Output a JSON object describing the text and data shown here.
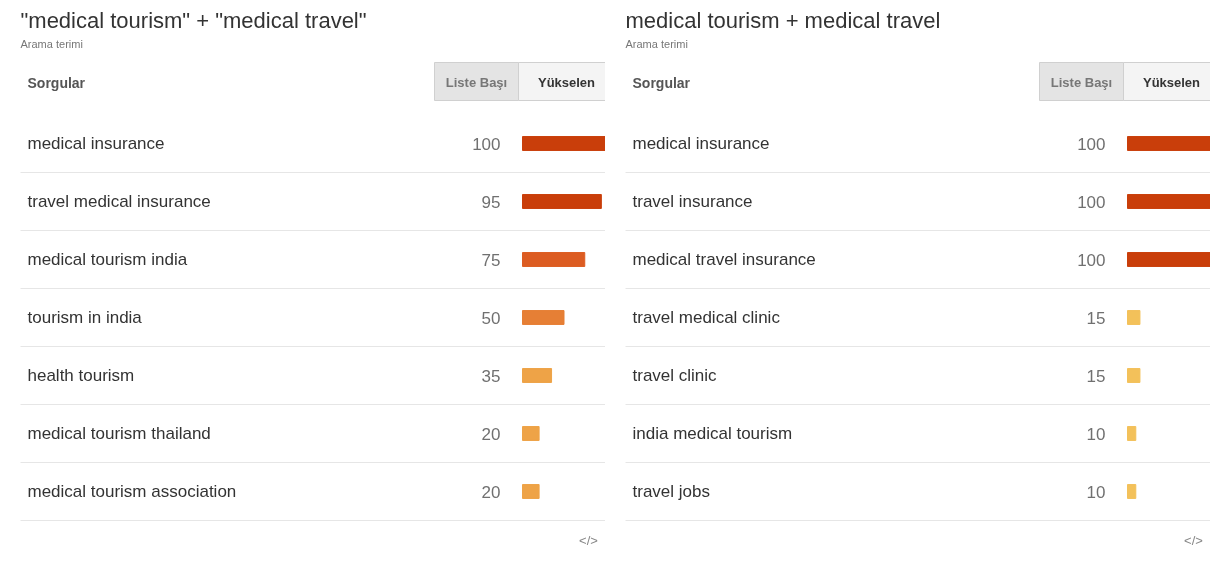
{
  "chart_data": [
    {
      "type": "bar",
      "orientation": "horizontal",
      "title": "\"medical tourism\" + \"medical travel\"",
      "subtitle": "Arama terimi",
      "annotations": [
        "Sorgular",
        "Liste Başı",
        "Yükselen",
        "</>"
      ],
      "categories": [
        "medical insurance",
        "travel medical insurance",
        "medical tourism india",
        "tourism in india",
        "health tourism",
        "medical tourism thailand",
        "medical tourism association"
      ],
      "values": [
        100,
        95,
        75,
        50,
        35,
        20,
        20
      ],
      "colors": [
        "#c93e0a",
        "#c93e0a",
        "#dc5c22",
        "#e67f35",
        "#eea347",
        "#eea347",
        "#eea347"
      ],
      "data_labels": true,
      "tick_labels": "y"
    },
    {
      "type": "bar",
      "orientation": "horizontal",
      "title": "medical tourism + medical travel",
      "subtitle": "Arama terimi",
      "annotations": [
        "Sorgular",
        "Liste Başı",
        "Yükselen",
        "</>"
      ],
      "categories": [
        "medical insurance",
        "travel insurance",
        "medical travel insurance",
        "travel medical clinic",
        "travel clinic",
        "india medical tourism",
        "travel jobs"
      ],
      "values": [
        100,
        100,
        100,
        15,
        15,
        10,
        10
      ],
      "colors": [
        "#c93e0a",
        "#c93e0a",
        "#c93e0a",
        "#f3c15a",
        "#f3c15a",
        "#f3c15a",
        "#f3c15a"
      ],
      "data_labels": true,
      "tick_labels": "y"
    }
  ]
}
